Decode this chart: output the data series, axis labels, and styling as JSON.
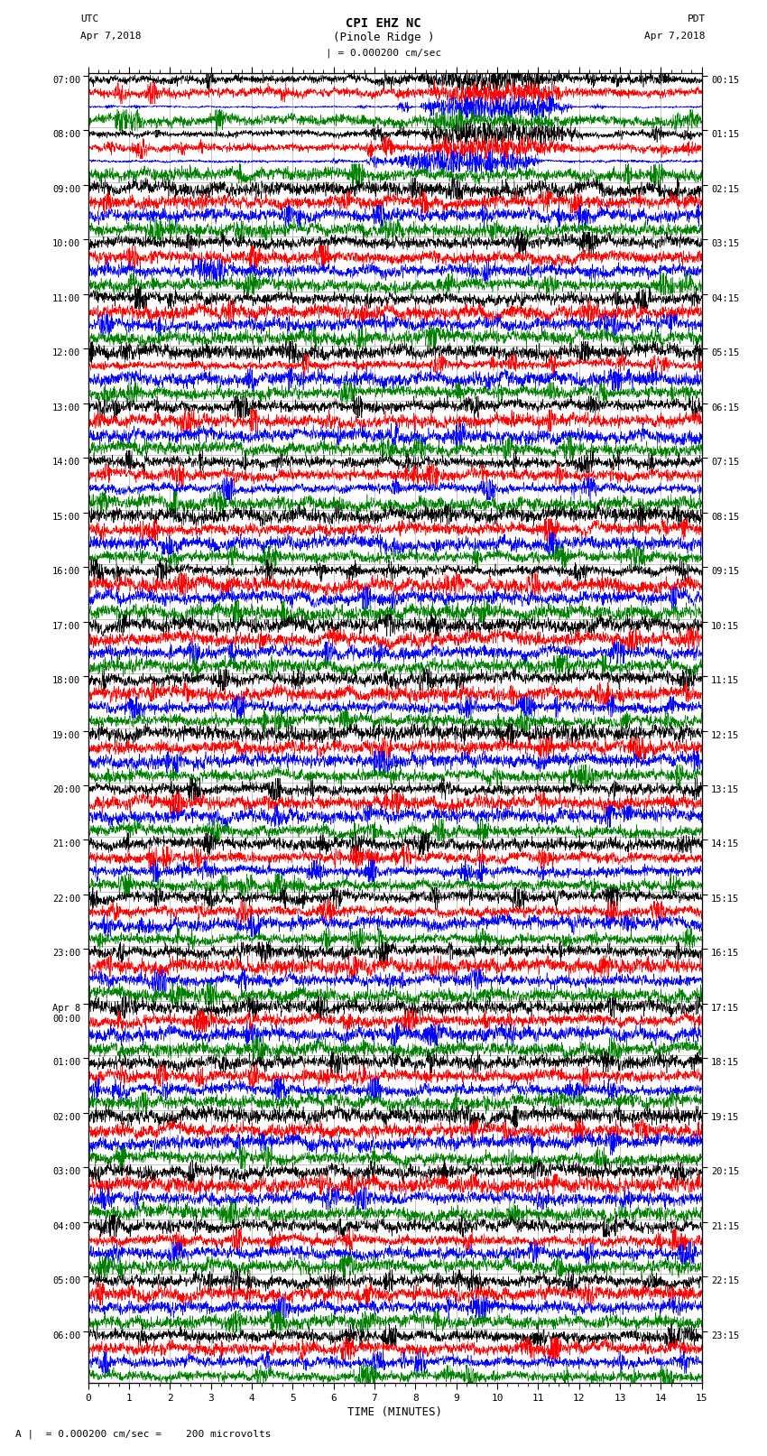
{
  "title_line1": "CPI EHZ NC",
  "title_line2": "(Pinole Ridge )",
  "scale_label": "| = 0.000200 cm/sec",
  "utc_label": "UTC",
  "utc_date": "Apr 7,2018",
  "pdt_label": "PDT",
  "pdt_date": "Apr 7,2018",
  "xlabel": "TIME (MINUTES)",
  "bottom_label": "A |  = 0.000200 cm/sec =    200 microvolts",
  "trace_colors": [
    "black",
    "red",
    "blue",
    "green"
  ],
  "num_rows": 24,
  "traces_per_row": 4,
  "minutes_per_row": 15,
  "fig_width": 8.5,
  "fig_height": 16.13,
  "bg_color": "white",
  "grid_color": "#999999",
  "left_labels_utc": [
    "07:00",
    "08:00",
    "09:00",
    "10:00",
    "11:00",
    "12:00",
    "13:00",
    "14:00",
    "15:00",
    "16:00",
    "17:00",
    "18:00",
    "19:00",
    "20:00",
    "21:00",
    "22:00",
    "23:00",
    "Apr 8\n00:00",
    "01:00",
    "02:00",
    "03:00",
    "04:00",
    "05:00",
    "06:00"
  ],
  "right_labels_pdt": [
    "00:15",
    "01:15",
    "02:15",
    "03:15",
    "04:15",
    "05:15",
    "06:15",
    "07:15",
    "08:15",
    "09:15",
    "10:15",
    "11:15",
    "12:15",
    "13:15",
    "14:15",
    "15:15",
    "16:15",
    "17:15",
    "18:15",
    "19:15",
    "20:15",
    "21:15",
    "22:15",
    "23:15"
  ],
  "eq_row": 0,
  "eq_minute": 7.5,
  "green_event_row": 12,
  "green_event2_row": 16
}
